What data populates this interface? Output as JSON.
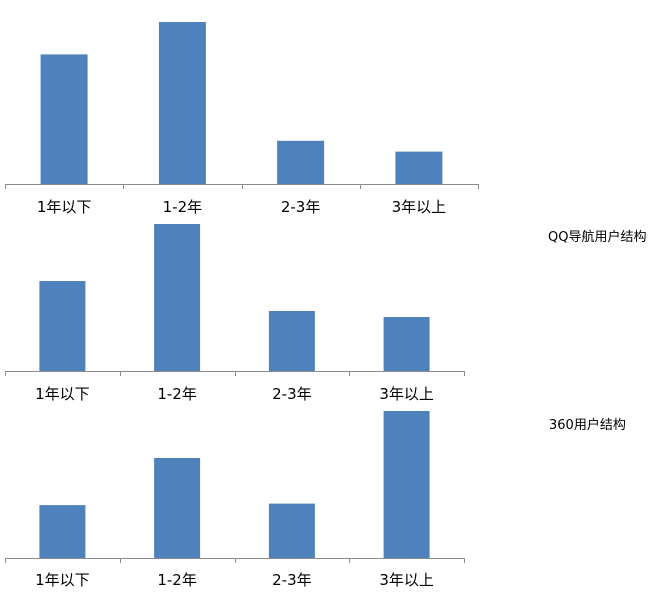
{
  "colors": {
    "bar": "#4f81bd",
    "axis": "#8c8c8c",
    "text": "#000000"
  },
  "chart_data": [
    {
      "type": "bar",
      "title": "",
      "categories": [
        "1年以下",
        "1-2年",
        "2-3年",
        "3年以上"
      ],
      "values": [
        36,
        45,
        12,
        9
      ],
      "ylim": [
        0,
        45
      ],
      "grid": false,
      "legend": "none"
    },
    {
      "type": "bar",
      "title": "QQ导航用户结构",
      "categories": [
        "1年以下",
        "1-2年",
        "2-3年",
        "3年以上"
      ],
      "values": [
        30,
        49,
        20,
        18
      ],
      "ylim": [
        0,
        49
      ],
      "grid": false,
      "legend": "none"
    },
    {
      "type": "bar",
      "title": "360用户结构",
      "categories": [
        "1年以下",
        "1-2年",
        "2-3年",
        "3年以上"
      ],
      "values": [
        18,
        34,
        18.5,
        50
      ],
      "ylim": [
        0,
        50
      ],
      "grid": false,
      "legend": "none"
    }
  ]
}
